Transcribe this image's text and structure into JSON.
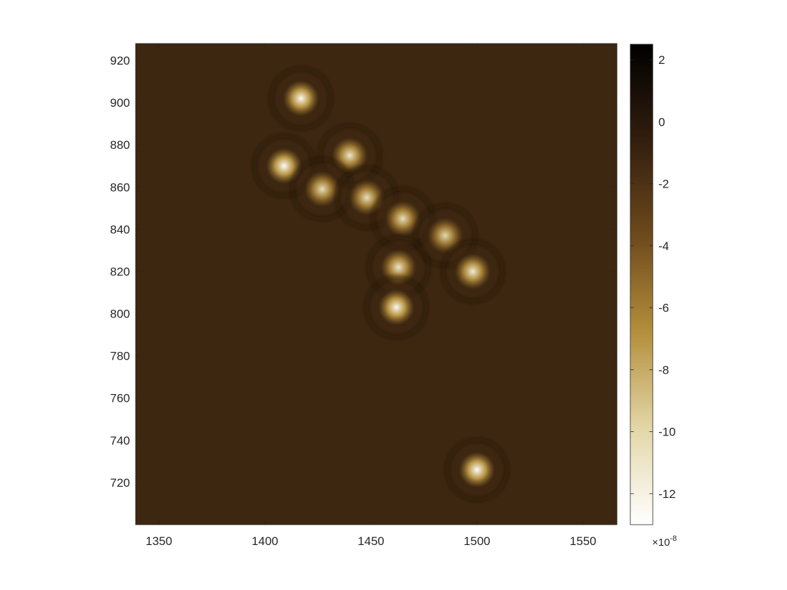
{
  "chart_data": {
    "type": "heatmap",
    "title": "",
    "xlabel": "",
    "ylabel": "",
    "xlim": [
      1339,
      1566
    ],
    "ylim": [
      700,
      928
    ],
    "x_ticks": [
      1350,
      1400,
      1450,
      1500,
      1550
    ],
    "y_ticks": [
      720,
      740,
      760,
      780,
      800,
      820,
      840,
      860,
      880,
      900,
      920
    ],
    "background_value": -1.2e-08,
    "colorbar": {
      "range": [
        -1.3e-07,
        2.5e-08
      ],
      "ticks": [
        2,
        0,
        -2,
        -4,
        -6,
        -8,
        -10,
        -12
      ],
      "exponent_base": "×10",
      "exponent": "-8",
      "colormap": [
        "#ffffff",
        "#e3d7a8",
        "#b48f3c",
        "#6e4a1c",
        "#321e0e",
        "#000000"
      ]
    },
    "blobs": [
      {
        "x": 1417,
        "y": 902,
        "value": -1.25e-07
      },
      {
        "x": 1409,
        "y": 870,
        "value": -1.28e-07
      },
      {
        "x": 1440,
        "y": 875,
        "value": -1.1e-07
      },
      {
        "x": 1427,
        "y": 859,
        "value": -1.05e-07
      },
      {
        "x": 1448,
        "y": 855,
        "value": -1.05e-07
      },
      {
        "x": 1465,
        "y": 845,
        "value": -1.05e-07
      },
      {
        "x": 1485,
        "y": 837,
        "value": -1e-07
      },
      {
        "x": 1463,
        "y": 822,
        "value": -1.1e-07
      },
      {
        "x": 1498,
        "y": 820,
        "value": -1.15e-07
      },
      {
        "x": 1462,
        "y": 803,
        "value": -1.25e-07
      },
      {
        "x": 1500,
        "y": 726,
        "value": -1.28e-07
      }
    ]
  }
}
